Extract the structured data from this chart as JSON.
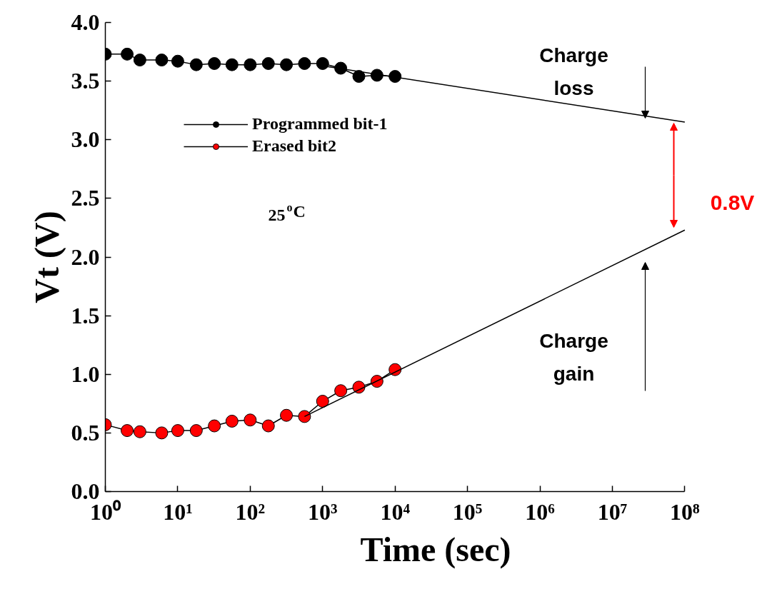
{
  "chart_data": {
    "type": "line",
    "xlabel": "Time (sec)",
    "ylabel": "Vt (V)",
    "log": "x",
    "grid": false,
    "marker": "circle",
    "legend": "top left",
    "xlim": [
      1,
      100000000
    ],
    "ylim": [
      0,
      4
    ],
    "xticks": [
      {
        "value": 1,
        "label": "10⁰"
      },
      {
        "value": 10,
        "label": "10¹"
      },
      {
        "value": 100,
        "label": "10²"
      },
      {
        "value": 1000,
        "label": "10³"
      },
      {
        "value": 10000,
        "label": "10⁴"
      },
      {
        "value": 100000,
        "label": "10⁵"
      },
      {
        "value": 1000000,
        "label": "10⁶"
      },
      {
        "value": 10000000,
        "label": "10⁷"
      },
      {
        "value": 100000000,
        "label": "10⁸"
      }
    ],
    "yticks": [
      {
        "value": 0,
        "label": "0.0"
      },
      {
        "value": 0.5,
        "label": "0.5"
      },
      {
        "value": 1,
        "label": "1.0"
      },
      {
        "value": 1.5,
        "label": "1.5"
      },
      {
        "value": 2,
        "label": "2.0"
      },
      {
        "value": 2.5,
        "label": "2.5"
      },
      {
        "value": 3,
        "label": "3.0"
      },
      {
        "value": 3.5,
        "label": "3.5"
      },
      {
        "value": 4,
        "label": "4.0"
      }
    ],
    "x": [
      1,
      2,
      3,
      6,
      10,
      18,
      32,
      56,
      100,
      178,
      316,
      562,
      1000,
      1778,
      3162,
      5623,
      10000
    ],
    "series": [
      {
        "name": "Programmed bit-1",
        "color": "#000000",
        "values": [
          3.73,
          3.73,
          3.68,
          3.68,
          3.67,
          3.64,
          3.65,
          3.64,
          3.64,
          3.65,
          3.64,
          3.65,
          3.65,
          3.61,
          3.54,
          3.55,
          3.54
        ]
      },
      {
        "name": "Erased bit2",
        "color": "#ff0000",
        "values": [
          0.57,
          0.52,
          0.51,
          0.5,
          0.52,
          0.52,
          0.56,
          0.6,
          0.61,
          0.56,
          0.65,
          0.64,
          0.77,
          0.86,
          0.89,
          0.94,
          1.04
        ]
      },
      {
        "type": "line",
        "color": "#000000",
        "marker": "none",
        "x": [
          1000,
          100000000
        ],
        "values": [
          3.63,
          3.15
        ]
      },
      {
        "type": "line",
        "color": "#000000",
        "marker": "none",
        "x": [
          562,
          100000000
        ],
        "values": [
          0.64,
          2.23
        ]
      }
    ],
    "annotations": [
      "25$^{o}$C",
      "Charge loss",
      "Charge gain",
      "0.8V"
    ]
  }
}
